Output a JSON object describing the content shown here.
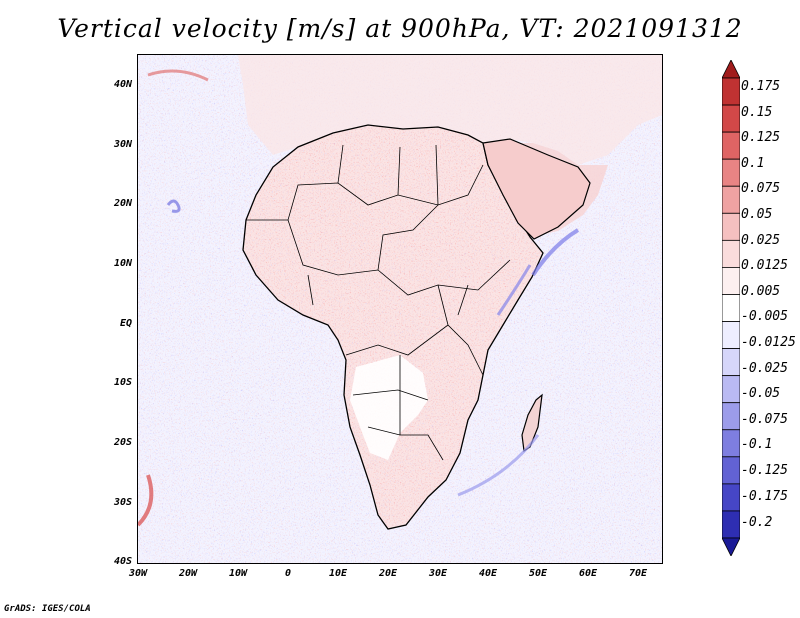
{
  "title": "Vertical velocity [m/s] at 900hPa, VT: 2021091312",
  "credit": "GrADS: IGES/COLA",
  "map": {
    "latitude_labels": [
      "40N",
      "30N",
      "20N",
      "10N",
      "EQ",
      "10S",
      "20S",
      "30S",
      "40S"
    ],
    "longitude_labels": [
      "30W",
      "20W",
      "10W",
      "0",
      "10E",
      "20E",
      "30E",
      "40E",
      "50E",
      "60E",
      "70E"
    ],
    "lon_range": [
      -30,
      75
    ],
    "lat_range": [
      -40,
      45
    ]
  },
  "colorbar": {
    "levels": [
      "0.175",
      "0.15",
      "0.125",
      "0.1",
      "0.075",
      "0.05",
      "0.025",
      "0.0125",
      "0.005",
      "-0.005",
      "-0.0125",
      "-0.025",
      "-0.05",
      "-0.075",
      "-0.1",
      "-0.125",
      "-0.175",
      "-0.2"
    ],
    "colors": [
      "#a01c1c",
      "#c03232",
      "#d24848",
      "#df6464",
      "#e88484",
      "#efa2a2",
      "#f5c0c0",
      "#fadcdc",
      "#fdf0f0",
      "#ffffff",
      "#eeeeff",
      "#d6d6fa",
      "#babaf3",
      "#9c9cea",
      "#7e7ee0",
      "#6262d4",
      "#4646c6",
      "#2e2eb2",
      "#1a1a96"
    ]
  }
}
